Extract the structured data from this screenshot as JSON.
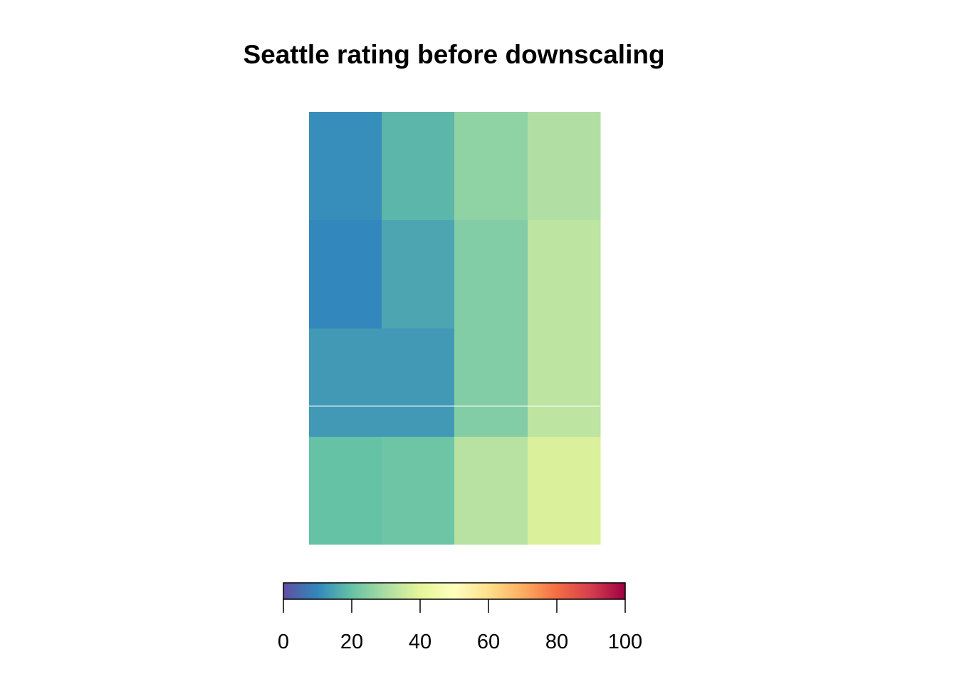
{
  "chart_data": {
    "type": "heatmap",
    "title": "Seattle rating before downscaling",
    "xlabel": "",
    "ylabel": "",
    "grid": false,
    "colorbar": {
      "range": [
        0,
        100
      ],
      "ticks": [
        0,
        20,
        40,
        60,
        80,
        100
      ],
      "tick_labels": [
        "0",
        "20",
        "40",
        "60",
        "80",
        "100"
      ],
      "colormap": "Spectral (reversed)",
      "palette": [
        "#5e4fa2",
        "#3288bd",
        "#66c2a5",
        "#abdda4",
        "#e6f598",
        "#ffffbf",
        "#fee08b",
        "#fdae61",
        "#f46d43",
        "#d53e4f",
        "#9e0142"
      ]
    },
    "rows": [
      {
        "values": [
          11,
          18,
          26,
          31
        ]
      },
      {
        "values": [
          10,
          15,
          24,
          33
        ]
      },
      {
        "values": [
          13,
          13,
          24,
          33
        ]
      },
      {
        "values": [
          13,
          13,
          24,
          33
        ]
      },
      {
        "values": [
          20,
          21,
          32,
          38
        ]
      }
    ]
  }
}
